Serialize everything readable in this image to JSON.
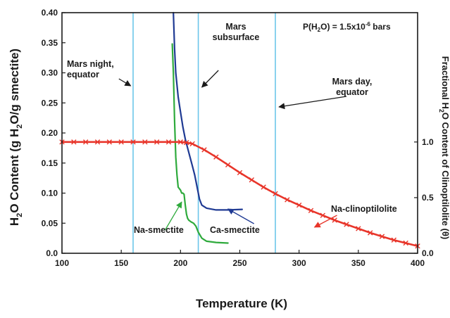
{
  "chart_data": {
    "type": "line",
    "xlabel": "Temperature (K)",
    "ylabel_main": "H",
    "ylabel_sub": "2",
    "ylabel_rest": "O Content (g H",
    "ylabel_sub2": "2",
    "ylabel_tail": "O/g smectite)",
    "y2label_a": "Fractional H",
    "y2label_sub": "2",
    "y2label_b": "O Content of Clinoptilolite (θ)",
    "xlim": [
      100,
      400
    ],
    "ylim": [
      0,
      0.4
    ],
    "y2lim_note": "right axis 0.0–1.0+ aligned with left 0–0.40 scale",
    "xticks": [
      "100",
      "150",
      "200",
      "250",
      "300",
      "350",
      "400"
    ],
    "yticks": [
      "0.0",
      "0.05",
      "0.10",
      "0.15",
      "0.20",
      "0.25",
      "0.30",
      "0.35",
      "0.40"
    ],
    "y2ticks": [
      "0.0",
      "0.5",
      "1.0"
    ],
    "y2tick_values": [
      0.0,
      0.5,
      1.0
    ],
    "y2_scale_factor": 0.185,
    "pressure_prefix": "P(H",
    "pressure_sub": "2",
    "pressure_mid": "O) = 1.5x10",
    "pressure_sup": "-6",
    "pressure_suffix": " bars",
    "vertical_lines": [
      {
        "x": 160,
        "label": [
          "Mars night,",
          "equator"
        ]
      },
      {
        "x": 215,
        "label": [
          "Mars",
          "subsurface"
        ]
      },
      {
        "x": 280,
        "label": [
          "Mars day,",
          "equator"
        ]
      }
    ],
    "series": [
      {
        "name": "Na-smectite",
        "color": "#2eaa3c",
        "points": [
          [
            193,
            0.348
          ],
          [
            194,
            0.3
          ],
          [
            195,
            0.22
          ],
          [
            196,
            0.16
          ],
          [
            197,
            0.13
          ],
          [
            198,
            0.11
          ],
          [
            200,
            0.105
          ],
          [
            201,
            0.1
          ],
          [
            202,
            0.1
          ],
          [
            203,
            0.098
          ],
          [
            204,
            0.08
          ],
          [
            205,
            0.065
          ],
          [
            206,
            0.058
          ],
          [
            207,
            0.055
          ],
          [
            209,
            0.052
          ],
          [
            211,
            0.05
          ],
          [
            213,
            0.045
          ],
          [
            215,
            0.035
          ],
          [
            218,
            0.025
          ],
          [
            222,
            0.02
          ],
          [
            230,
            0.018
          ],
          [
            240,
            0.017
          ]
        ]
      },
      {
        "name": "Ca-smectite",
        "color": "#1f3a93",
        "points": [
          [
            194,
            0.4
          ],
          [
            195,
            0.34
          ],
          [
            196,
            0.3
          ],
          [
            198,
            0.26
          ],
          [
            200,
            0.235
          ],
          [
            202,
            0.21
          ],
          [
            204,
            0.19
          ],
          [
            206,
            0.175
          ],
          [
            208,
            0.16
          ],
          [
            210,
            0.145
          ],
          [
            212,
            0.13
          ],
          [
            214,
            0.11
          ],
          [
            216,
            0.09
          ],
          [
            218,
            0.08
          ],
          [
            222,
            0.075
          ],
          [
            230,
            0.072
          ],
          [
            240,
            0.072
          ],
          [
            252,
            0.073
          ]
        ]
      },
      {
        "name": "Na-clinoptilolite",
        "color": "#e8352a",
        "points": [
          [
            100,
            0.185
          ],
          [
            110,
            0.185
          ],
          [
            120,
            0.185
          ],
          [
            130,
            0.185
          ],
          [
            140,
            0.185
          ],
          [
            150,
            0.185
          ],
          [
            160,
            0.185
          ],
          [
            170,
            0.185
          ],
          [
            180,
            0.185
          ],
          [
            190,
            0.185
          ],
          [
            200,
            0.185
          ],
          [
            205,
            0.184
          ],
          [
            210,
            0.182
          ],
          [
            220,
            0.172
          ],
          [
            230,
            0.16
          ],
          [
            240,
            0.147
          ],
          [
            250,
            0.134
          ],
          [
            260,
            0.122
          ],
          [
            270,
            0.11
          ],
          [
            280,
            0.099
          ],
          [
            290,
            0.089
          ],
          [
            300,
            0.08
          ],
          [
            310,
            0.071
          ],
          [
            320,
            0.063
          ],
          [
            330,
            0.055
          ],
          [
            340,
            0.048
          ],
          [
            350,
            0.041
          ],
          [
            360,
            0.034
          ],
          [
            370,
            0.028
          ],
          [
            380,
            0.022
          ],
          [
            390,
            0.017
          ],
          [
            400,
            0.012
          ]
        ],
        "markers": "x"
      }
    ],
    "series_labels": [
      {
        "text": "Na-smectite",
        "series": "Na-smectite"
      },
      {
        "text": "Ca-smectite",
        "series": "Ca-smectite"
      },
      {
        "text": "Na-clinoptilolite",
        "series": "Na-clinoptilolite"
      }
    ],
    "colors": {
      "axis": "#1a1a1a",
      "vline": "#6cc6ea",
      "annotation": "#1a1a1a",
      "tick_text": "#1a1a1a"
    }
  }
}
